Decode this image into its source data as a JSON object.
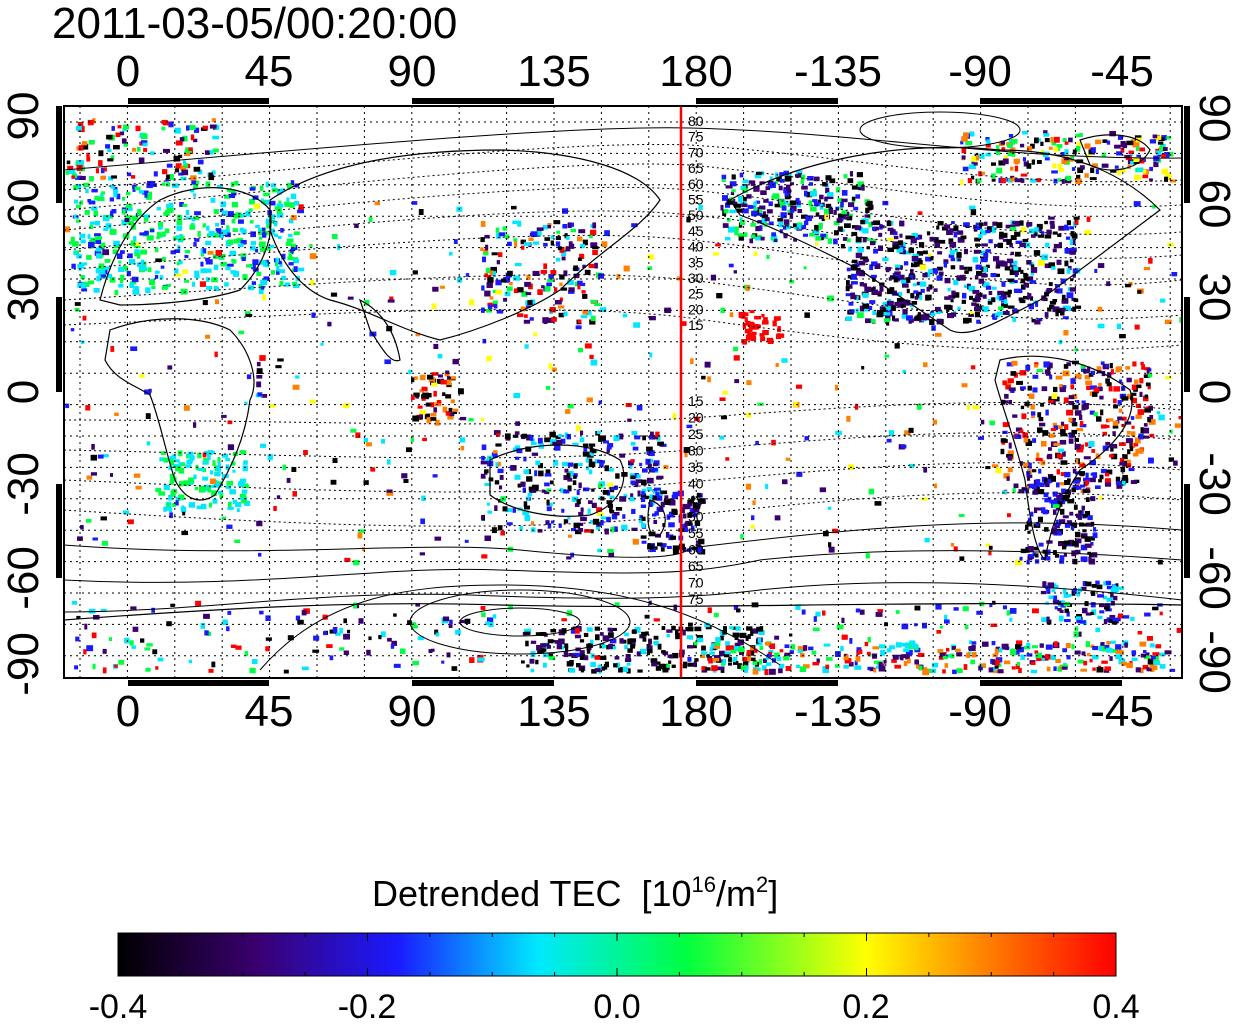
{
  "title": "2011-03-05/00:20:00",
  "x_tick_labels": [
    "0",
    "45",
    "90",
    "135",
    "180",
    "-135",
    "-90",
    "-45"
  ],
  "y_tick_labels_left": [
    "90",
    "60",
    "30",
    "0",
    "-30",
    "-60",
    "-90"
  ],
  "y_tick_labels_right": [
    "90",
    "60",
    "30",
    "0",
    "-30",
    "-60",
    "-90"
  ],
  "colorbar": {
    "title_main": "Detrended TEC",
    "title_unit_open": "[10",
    "title_unit_exp": "16",
    "title_unit_mid": "/m",
    "title_unit_exp2": "2",
    "title_unit_close": "]",
    "tick_labels": [
      "-0.4",
      "-0.2",
      "0.0",
      "0.2",
      "0.4"
    ],
    "min": -0.4,
    "max": 0.4,
    "colors": [
      "#000000",
      "#3a0070",
      "#1a1aff",
      "#00e8ff",
      "#00ff40",
      "#ffff00",
      "#ff8000",
      "#ff0000"
    ]
  },
  "contour_labels_north": [
    "80",
    "75",
    "70",
    "65",
    "60",
    "55",
    "50",
    "45",
    "40",
    "35",
    "30",
    "25",
    "20",
    "15"
  ],
  "contour_labels_south": [
    "15",
    "20",
    "25",
    "30",
    "35",
    "40",
    "45",
    "50",
    "55",
    "60",
    "65",
    "70",
    "75"
  ],
  "colors": {
    "meridian_line": "#ff0000",
    "frame": "#000000"
  }
}
